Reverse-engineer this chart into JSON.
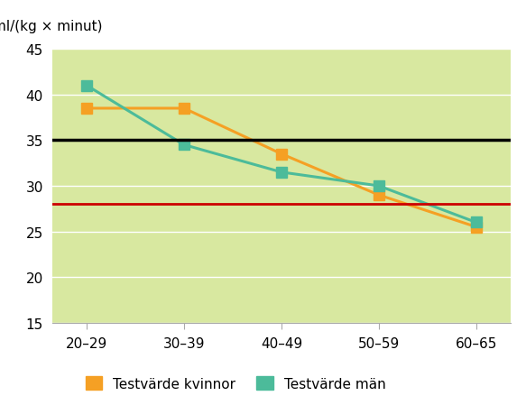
{
  "categories": [
    "20–29",
    "30–39",
    "40–49",
    "50–59",
    "60–65"
  ],
  "x_positions": [
    0,
    1,
    2,
    3,
    4
  ],
  "kvinnor_values": [
    38.5,
    38.5,
    33.5,
    29.0,
    25.5
  ],
  "man_values": [
    41.0,
    34.5,
    31.5,
    30.0,
    26.0
  ],
  "kvinnor_color": "#F5A024",
  "man_color": "#4CBB9A",
  "black_line_y": 35,
  "red_line_y": 28,
  "ylim": [
    15,
    45
  ],
  "yticks": [
    15,
    20,
    25,
    30,
    35,
    40,
    45
  ],
  "ylabel": "ml/(kg × minut)",
  "plot_bg_color": "#d8e8a0",
  "fig_bg_color": "#ffffff",
  "grid_color": "#c8d890",
  "legend_kvinnor": "Testvärde kvinnor",
  "legend_man": "Testvärde män",
  "marker_size": 9,
  "linewidth": 2.2
}
